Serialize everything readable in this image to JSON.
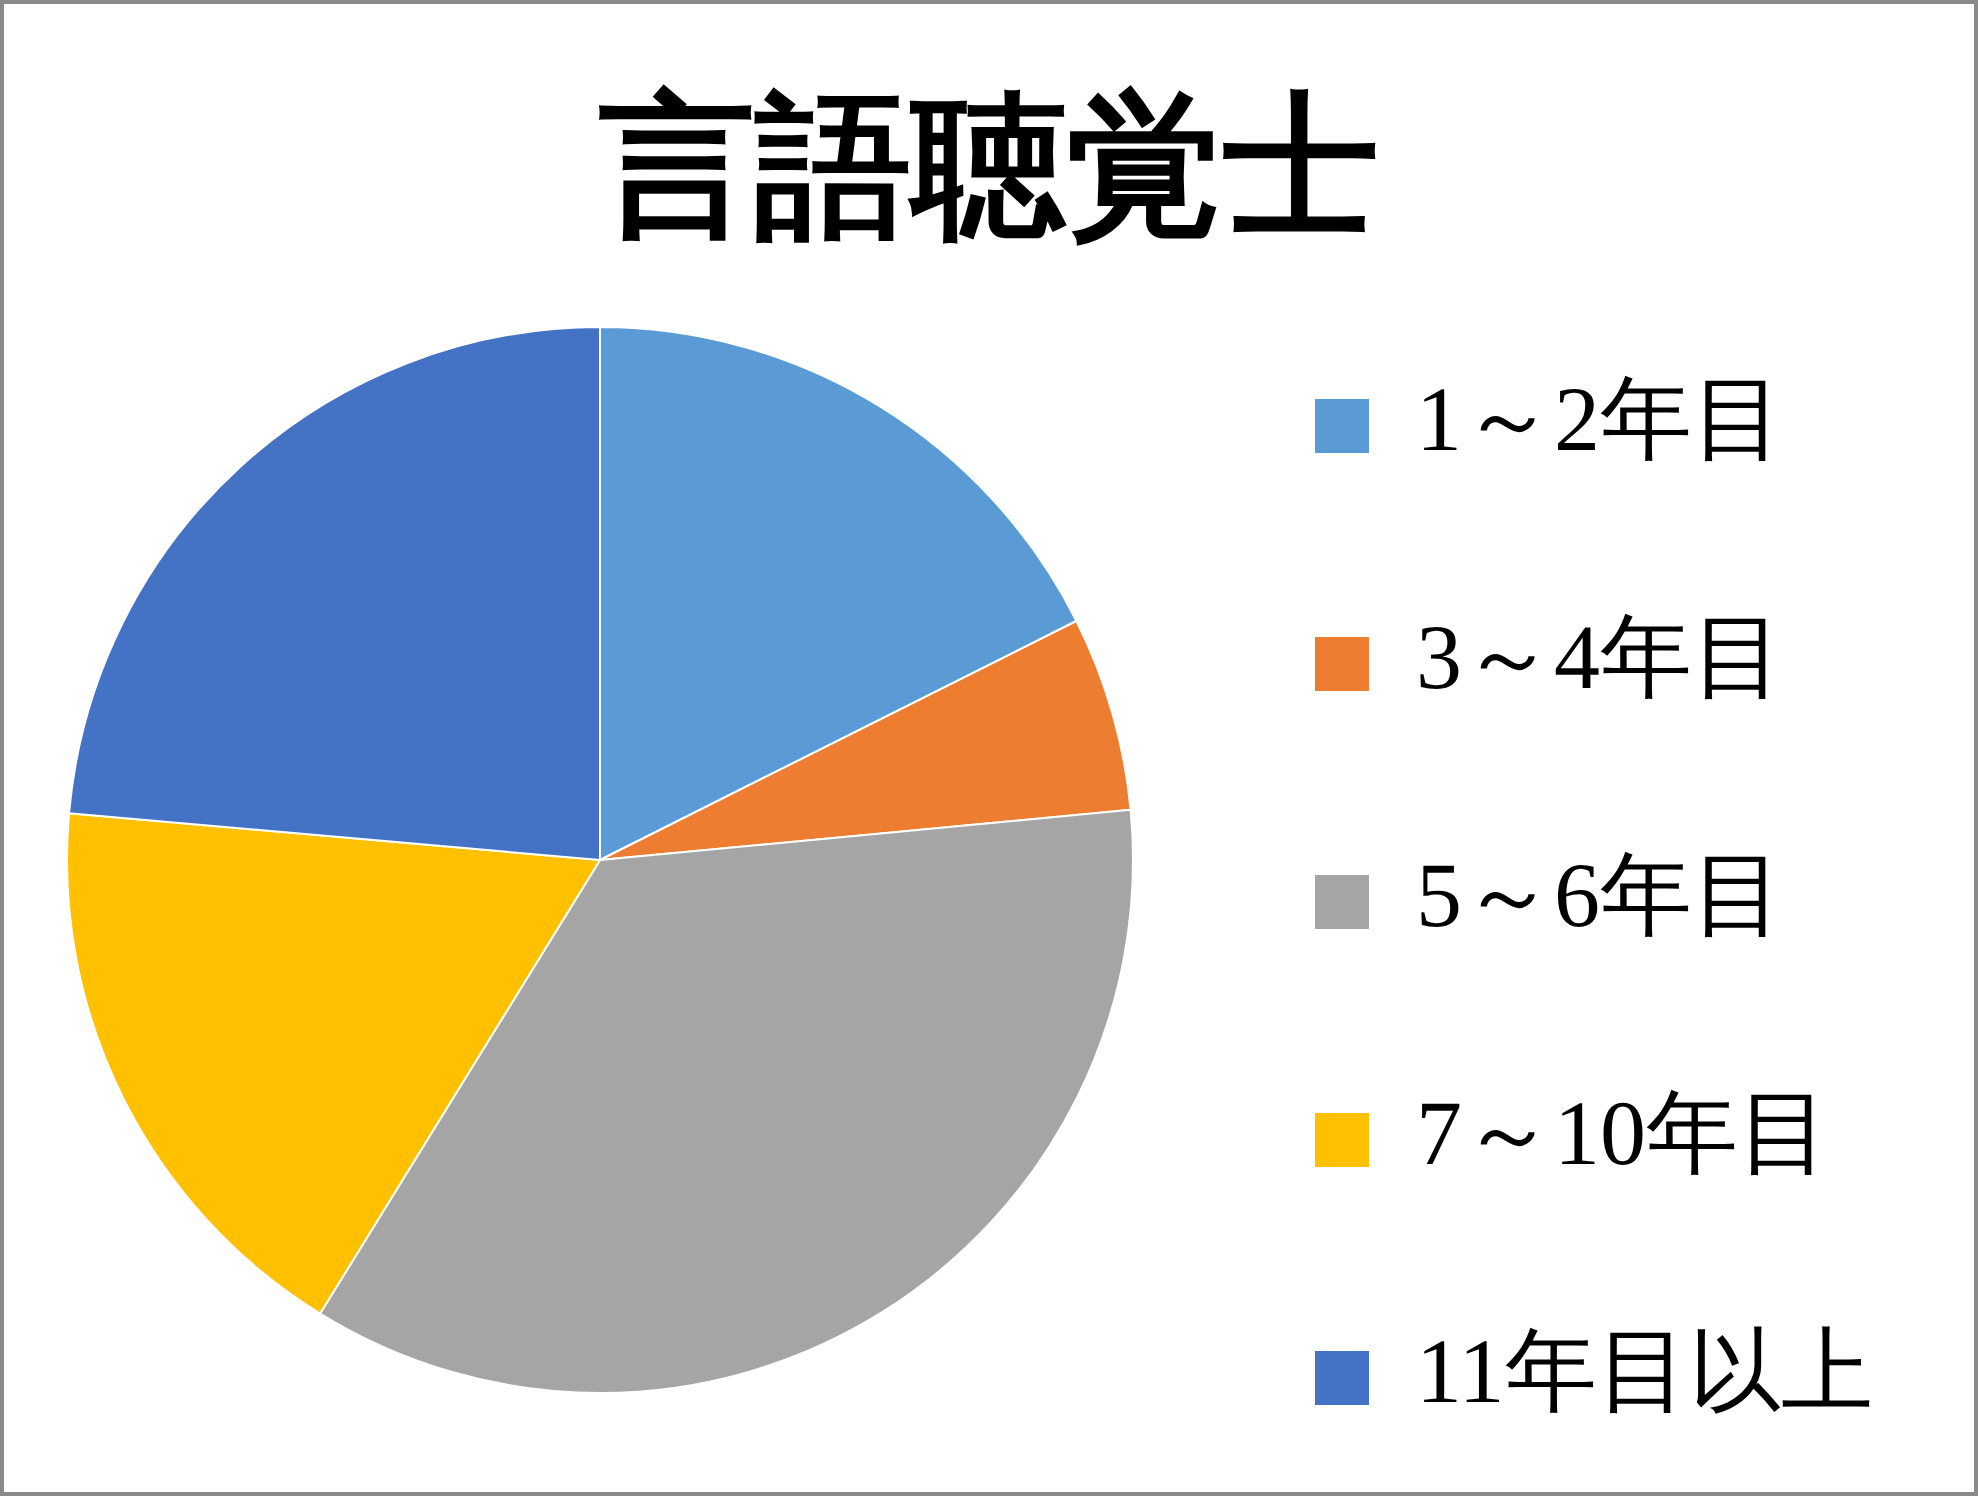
{
  "chart_data": {
    "type": "pie",
    "title": "言語聴覚士",
    "categories": [
      "1～2年目",
      "3～4年目",
      "5～6年目",
      "7～10年目",
      "11年目以上"
    ],
    "values": [
      17.6,
      5.9,
      35.3,
      17.6,
      23.6
    ],
    "colors": [
      "#5b9bd5",
      "#ed7d31",
      "#a5a5a5",
      "#ffc000",
      "#4472c4"
    ],
    "legend": "right"
  }
}
